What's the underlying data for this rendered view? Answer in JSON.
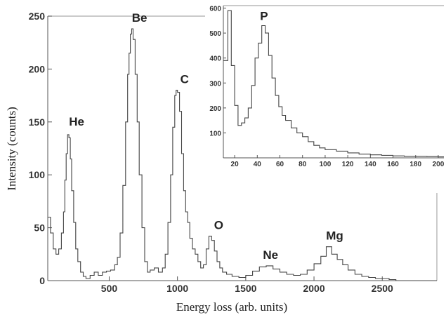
{
  "chart_data": [
    {
      "id": "main",
      "type": "histogram",
      "xlabel": "Energy loss (arb. units)",
      "ylabel": "Intensity (counts)",
      "xlim": [
        50,
        2900
      ],
      "ylim": [
        0,
        250
      ],
      "xticks": [
        500,
        1000,
        1500,
        2000,
        2500
      ],
      "yticks": [
        0,
        50,
        100,
        150,
        200,
        250
      ],
      "grid": false,
      "peaks": [
        {
          "label": "He",
          "x": 200,
          "y": 140
        },
        {
          "label": "Be",
          "x": 660,
          "y": 238
        },
        {
          "label": "C",
          "x": 990,
          "y": 180
        },
        {
          "label": "O",
          "x": 1240,
          "y": 42
        },
        {
          "label": "Ne",
          "x": 1620,
          "y": 14
        },
        {
          "label": "Mg",
          "x": 2090,
          "y": 32
        }
      ],
      "points": [
        [
          50,
          60
        ],
        [
          70,
          45
        ],
        [
          90,
          30
        ],
        [
          110,
          25
        ],
        [
          130,
          30
        ],
        [
          150,
          45
        ],
        [
          165,
          65
        ],
        [
          175,
          95
        ],
        [
          185,
          120
        ],
        [
          195,
          138
        ],
        [
          205,
          135
        ],
        [
          215,
          115
        ],
        [
          225,
          85
        ],
        [
          240,
          55
        ],
        [
          255,
          30
        ],
        [
          270,
          18
        ],
        [
          290,
          8
        ],
        [
          310,
          4
        ],
        [
          330,
          2
        ],
        [
          360,
          5
        ],
        [
          390,
          8
        ],
        [
          420,
          5
        ],
        [
          450,
          8
        ],
        [
          480,
          9
        ],
        [
          510,
          10
        ],
        [
          540,
          15
        ],
        [
          560,
          22
        ],
        [
          580,
          45
        ],
        [
          600,
          90
        ],
        [
          620,
          150
        ],
        [
          635,
          195
        ],
        [
          645,
          215
        ],
        [
          655,
          233
        ],
        [
          665,
          238
        ],
        [
          675,
          228
        ],
        [
          690,
          195
        ],
        [
          705,
          150
        ],
        [
          720,
          100
        ],
        [
          740,
          50
        ],
        [
          760,
          18
        ],
        [
          780,
          8
        ],
        [
          800,
          10
        ],
        [
          830,
          12
        ],
        [
          860,
          8
        ],
        [
          890,
          12
        ],
        [
          910,
          25
        ],
        [
          930,
          55
        ],
        [
          950,
          100
        ],
        [
          965,
          145
        ],
        [
          980,
          175
        ],
        [
          990,
          180
        ],
        [
          1000,
          178
        ],
        [
          1015,
          160
        ],
        [
          1030,
          120
        ],
        [
          1045,
          85
        ],
        [
          1060,
          65
        ],
        [
          1075,
          55
        ],
        [
          1090,
          40
        ],
        [
          1110,
          30
        ],
        [
          1130,
          25
        ],
        [
          1150,
          18
        ],
        [
          1170,
          12
        ],
        [
          1190,
          15
        ],
        [
          1210,
          30
        ],
        [
          1230,
          42
        ],
        [
          1250,
          38
        ],
        [
          1270,
          28
        ],
        [
          1290,
          18
        ],
        [
          1310,
          12
        ],
        [
          1330,
          8
        ],
        [
          1360,
          6
        ],
        [
          1400,
          4
        ],
        [
          1450,
          3
        ],
        [
          1500,
          5
        ],
        [
          1550,
          9
        ],
        [
          1600,
          13
        ],
        [
          1650,
          14
        ],
        [
          1700,
          11
        ],
        [
          1750,
          8
        ],
        [
          1800,
          6
        ],
        [
          1850,
          5
        ],
        [
          1900,
          6
        ],
        [
          1950,
          10
        ],
        [
          2000,
          16
        ],
        [
          2050,
          23
        ],
        [
          2090,
          32
        ],
        [
          2130,
          25
        ],
        [
          2170,
          20
        ],
        [
          2210,
          15
        ],
        [
          2250,
          10
        ],
        [
          2300,
          6
        ],
        [
          2350,
          4
        ],
        [
          2400,
          3
        ],
        [
          2450,
          2
        ],
        [
          2500,
          2
        ],
        [
          2550,
          1
        ],
        [
          2600,
          0
        ],
        [
          2900,
          0
        ]
      ]
    },
    {
      "id": "inset",
      "type": "histogram",
      "xlim": [
        10,
        205
      ],
      "ylim": [
        0,
        610
      ],
      "xticks": [
        20,
        40,
        60,
        80,
        100,
        120,
        140,
        160,
        180,
        200
      ],
      "yticks": [
        100,
        200,
        300,
        400,
        500,
        600
      ],
      "grid": false,
      "peaks": [
        {
          "label": "P",
          "x": 46,
          "y": 535
        }
      ],
      "points": [
        [
          10,
          390
        ],
        [
          14,
          590
        ],
        [
          17,
          370
        ],
        [
          20,
          210
        ],
        [
          23,
          130
        ],
        [
          26,
          140
        ],
        [
          29,
          160
        ],
        [
          32,
          200
        ],
        [
          35,
          290
        ],
        [
          38,
          400
        ],
        [
          41,
          460
        ],
        [
          44,
          530
        ],
        [
          47,
          500
        ],
        [
          50,
          410
        ],
        [
          53,
          320
        ],
        [
          56,
          250
        ],
        [
          59,
          205
        ],
        [
          62,
          170
        ],
        [
          65,
          150
        ],
        [
          70,
          120
        ],
        [
          75,
          100
        ],
        [
          80,
          85
        ],
        [
          85,
          65
        ],
        [
          90,
          50
        ],
        [
          95,
          40
        ],
        [
          100,
          33
        ],
        [
          110,
          27
        ],
        [
          120,
          20
        ],
        [
          130,
          15
        ],
        [
          140,
          12
        ],
        [
          150,
          10
        ],
        [
          160,
          8
        ],
        [
          170,
          6
        ],
        [
          180,
          6
        ],
        [
          190,
          5
        ],
        [
          200,
          4
        ],
        [
          205,
          4
        ]
      ]
    }
  ]
}
